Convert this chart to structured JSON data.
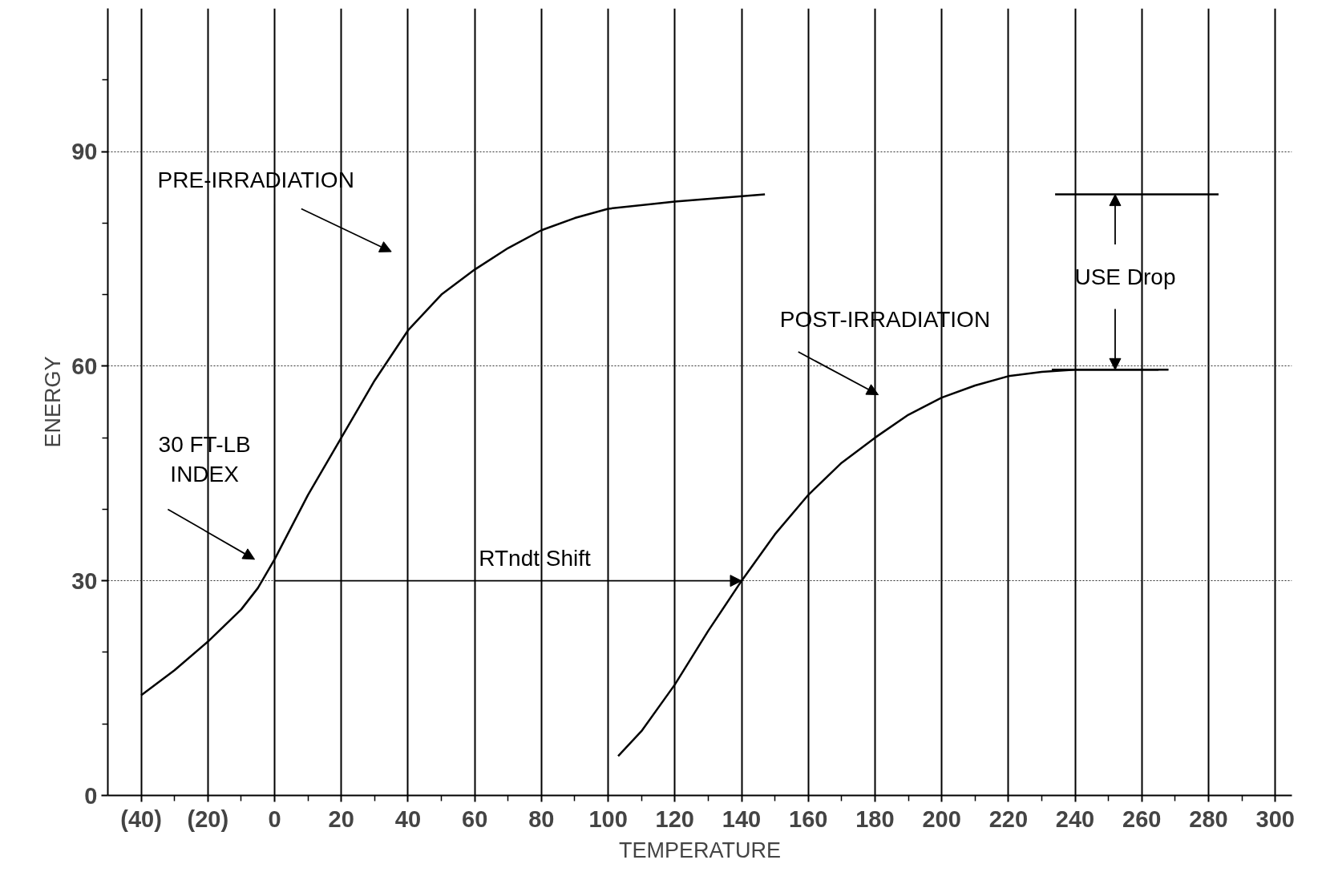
{
  "chart_data": {
    "type": "line",
    "xlabel": "TEMPERATURE",
    "ylabel": "ENERGY",
    "xlim": [
      -50,
      305
    ],
    "ylim": [
      0,
      110
    ],
    "xticks": [
      {
        "value": -40,
        "label": "(40)"
      },
      {
        "value": -20,
        "label": "(20)"
      },
      0,
      20,
      40,
      60,
      80,
      100,
      120,
      140,
      160,
      180,
      200,
      220,
      240,
      260,
      280,
      300,
      {
        "value": -30,
        "label": null
      },
      {
        "value": -10,
        "label": null
      },
      {
        "value": 10,
        "label": null
      },
      {
        "value": 30,
        "label": null
      },
      {
        "value": 50,
        "label": null
      },
      {
        "value": 70,
        "label": null
      },
      {
        "value": 90,
        "label": null
      },
      {
        "value": 110,
        "label": null
      },
      {
        "value": 130,
        "label": null
      },
      {
        "value": 150,
        "label": null
      },
      {
        "value": 170,
        "label": null
      },
      {
        "value": 190,
        "label": null
      },
      {
        "value": 210,
        "label": null
      },
      {
        "value": 230,
        "label": null
      },
      {
        "value": 250,
        "label": null
      },
      {
        "value": 270,
        "label": null
      },
      {
        "value": 290,
        "label": null
      }
    ],
    "yticks": [
      0,
      30,
      60,
      90,
      {
        "value": 10,
        "label": null
      },
      {
        "value": 20,
        "label": null
      },
      {
        "value": 40,
        "label": null
      },
      {
        "value": 50,
        "label": null
      },
      {
        "value": 70,
        "label": null
      },
      {
        "value": 80,
        "label": null
      },
      {
        "value": 100,
        "label": null
      }
    ],
    "grid": true,
    "marker": "none",
    "line_style": "solid",
    "series": [
      {
        "color": "#000000",
        "x": [
          -40,
          -30,
          -20,
          -10,
          -5,
          0,
          10,
          20,
          30,
          40,
          50,
          60,
          70,
          80,
          90,
          100,
          120,
          147
        ],
        "values": [
          14,
          17.5,
          21.5,
          26,
          29,
          33,
          42,
          50,
          58,
          65,
          70,
          73.5,
          76.5,
          79,
          80.7,
          82,
          83,
          84
        ]
      },
      {
        "color": "#000000",
        "x": [
          103,
          110,
          120,
          130,
          140,
          150,
          160,
          170,
          180,
          190,
          200,
          210,
          220,
          230,
          240,
          250,
          265
        ],
        "values": [
          5.5,
          9,
          15.5,
          23,
          30,
          36.5,
          42,
          46.5,
          50,
          53.2,
          55.6,
          57.3,
          58.6,
          59.2,
          59.5,
          59.5,
          59.5
        ]
      },
      {
        "color": "#000000",
        "x": [
          234,
          283
        ],
        "values": [
          84,
          84
        ]
      },
      {
        "color": "#000000",
        "x": [
          233,
          268
        ],
        "values": [
          59.5,
          59.5
        ]
      }
    ],
    "annotations": [
      "PRE-IRRADIATION",
      "POST-IRRADIATION",
      "30 FT-LB\nINDEX",
      "RTndt Shift",
      {
        "text": "USE Drop",
        "x": 252,
        "y": 84
      }
    ]
  }
}
